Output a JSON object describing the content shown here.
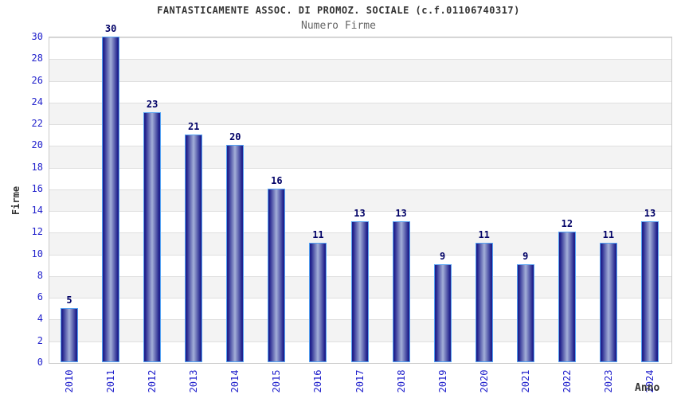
{
  "chart_data": {
    "type": "bar",
    "title": "FANTASTICAMENTE ASSOC. DI PROMOZ. SOCIALE (c.f.01106740317)",
    "subtitle": "Numero Firme",
    "xlabel": "Anno",
    "ylabel": "Firme",
    "categories": [
      "2010",
      "2011",
      "2012",
      "2013",
      "2014",
      "2015",
      "2016",
      "2017",
      "2018",
      "2019",
      "2020",
      "2021",
      "2022",
      "2023",
      "2024"
    ],
    "values": [
      5,
      30,
      23,
      21,
      20,
      16,
      11,
      13,
      13,
      9,
      11,
      9,
      12,
      11,
      13
    ],
    "ylim": [
      0,
      30
    ],
    "ytick_step": 2,
    "grid": "horizontal-bands-alternating",
    "legend": "none",
    "colors": {
      "bar_edge": "#20208c",
      "bar_center": "#a3afd8",
      "bar_border": "#55a2f2",
      "tick_label": "#2222cc",
      "value_label": "#000066",
      "band_gray": "#f3f3f3",
      "band_white": "#ffffff",
      "gridline": "#dfdfdf",
      "plot_border": "#c9c9c9",
      "title_color": "#333333",
      "subtitle_color": "#666666"
    }
  }
}
